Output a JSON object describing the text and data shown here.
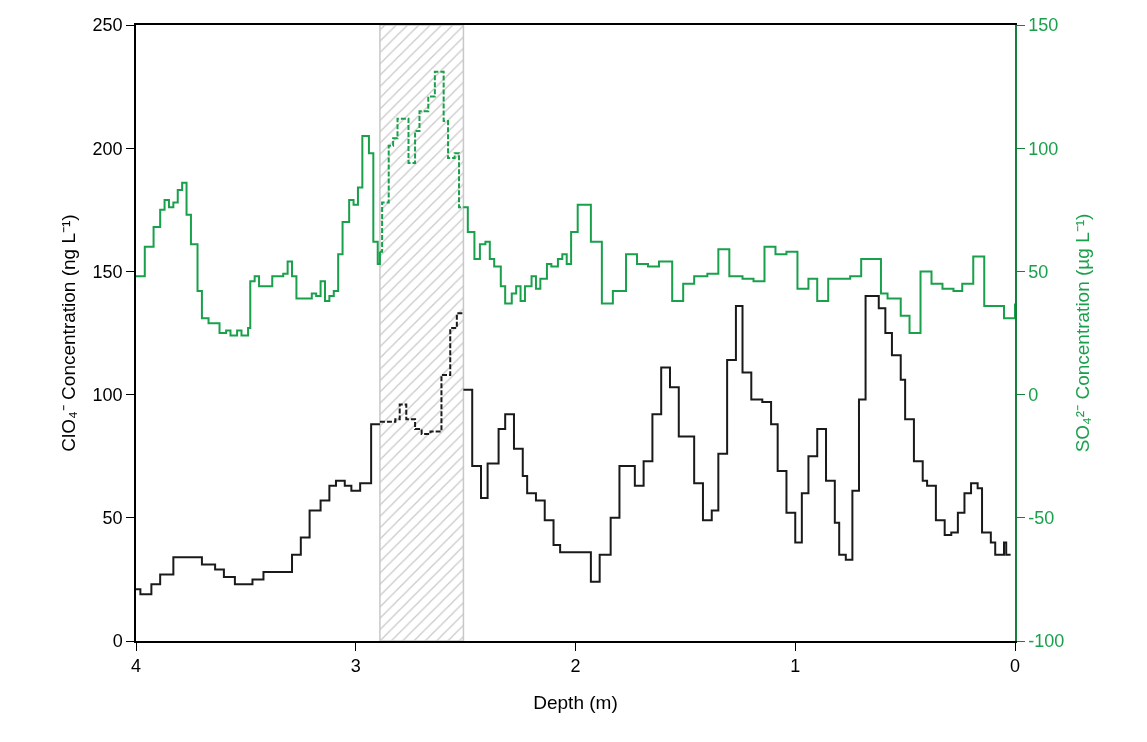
{
  "chart_data": {
    "type": "step",
    "xlabel": "Depth (m)",
    "ylabel": "ClO₄⁻ Concentration (ng L⁻¹)",
    "y2label": "SO₄²⁻ Concentration (µg L⁻¹)",
    "xlim": [
      4,
      0
    ],
    "xticks": [
      4,
      3,
      2,
      1,
      0
    ],
    "ylim": [
      0,
      250
    ],
    "yticks": [
      0,
      50,
      100,
      150,
      200,
      250
    ],
    "y2lim": [
      -100,
      150
    ],
    "y2ticks": [
      -100,
      -50,
      0,
      50,
      100,
      150
    ],
    "grid": false,
    "bands": [
      {
        "axis": "x",
        "from": 2.89,
        "to": 2.51,
        "color": "#c8c8c8"
      }
    ],
    "series": [
      {
        "color": "#1a1a1a",
        "line_style": "solid",
        "x": [
          4.0,
          3.98,
          3.93,
          3.89,
          3.83,
          3.7,
          3.64,
          3.6,
          3.55,
          3.51,
          3.47,
          3.42,
          3.29,
          3.25,
          3.21,
          3.16,
          3.12,
          3.09,
          3.05,
          3.02,
          2.98,
          2.93,
          2.89
        ],
        "values": [
          21,
          19,
          23,
          27,
          34,
          31,
          29,
          26,
          23,
          23,
          25,
          28,
          35,
          42,
          53,
          57,
          63,
          65,
          63,
          61,
          64,
          88,
          88
        ]
      },
      {
        "color": "#1a1a1a",
        "line_style": "dashed",
        "x": [
          2.89,
          2.82,
          2.8,
          2.77,
          2.73,
          2.7,
          2.66,
          2.61,
          2.57,
          2.54,
          2.51
        ],
        "values": [
          89,
          90,
          96,
          90,
          86,
          84,
          85,
          108,
          127,
          133,
          133
        ]
      },
      {
        "color": "#1a1a1a",
        "line_style": "solid",
        "x": [
          2.51,
          2.47,
          2.43,
          2.4,
          2.35,
          2.32,
          2.28,
          2.24,
          2.22,
          2.18,
          2.14,
          2.1,
          2.07,
          2.0,
          1.93,
          1.89,
          1.84,
          1.8,
          1.73,
          1.69,
          1.65,
          1.61,
          1.57,
          1.53,
          1.46,
          1.42,
          1.38,
          1.35,
          1.31,
          1.27,
          1.24,
          1.2,
          1.15,
          1.11,
          1.08,
          1.04,
          1.0,
          0.97,
          0.94,
          0.9,
          0.86,
          0.82,
          0.8,
          0.77,
          0.74,
          0.71,
          0.68,
          0.62,
          0.59,
          0.56,
          0.52,
          0.5,
          0.46,
          0.42,
          0.4,
          0.36,
          0.32,
          0.29,
          0.26,
          0.23,
          0.2,
          0.17,
          0.15,
          0.11,
          0.09,
          0.05,
          0.04,
          0.02
        ],
        "values": [
          102,
          71,
          58,
          72,
          86,
          92,
          78,
          67,
          60,
          57,
          49,
          39,
          36,
          36,
          24,
          35,
          50,
          71,
          63,
          73,
          92,
          111,
          103,
          83,
          64,
          49,
          53,
          76,
          114,
          136,
          109,
          98,
          97,
          88,
          69,
          52,
          40,
          60,
          75,
          86,
          65,
          48,
          35,
          33,
          61,
          98,
          140,
          135,
          125,
          116,
          106,
          90,
          73,
          65,
          63,
          49,
          43,
          44,
          52,
          60,
          64,
          62,
          44,
          40,
          35,
          40,
          35,
          35
        ]
      },
      {
        "color": "#19a04b",
        "line_style": "solid",
        "axis": "y2",
        "x": [
          4.0,
          3.96,
          3.92,
          3.89,
          3.87,
          3.85,
          3.83,
          3.81,
          3.79,
          3.77,
          3.75,
          3.72,
          3.7,
          3.67,
          3.62,
          3.59,
          3.57,
          3.54,
          3.52,
          3.49,
          3.48,
          3.46,
          3.44,
          3.38,
          3.33,
          3.31,
          3.29,
          3.27,
          3.2,
          3.18,
          3.16,
          3.14,
          3.12,
          3.1,
          3.08,
          3.06,
          3.03,
          3.01,
          2.99,
          2.97,
          2.94,
          2.92,
          2.9,
          2.89
        ],
        "values": [
          48,
          60,
          68,
          75,
          79,
          76,
          78,
          83,
          86,
          73,
          61,
          42,
          31,
          29,
          25,
          26,
          24,
          26,
          24,
          27,
          46,
          48,
          44,
          48,
          49,
          54,
          48,
          39,
          41,
          40,
          46,
          38,
          40,
          42,
          57,
          70,
          79,
          77,
          84,
          105,
          98,
          62,
          53,
          58
        ]
      },
      {
        "color": "#19a04b",
        "line_style": "dashed",
        "axis": "y2",
        "x": [
          2.89,
          2.88,
          2.85,
          2.83,
          2.81,
          2.76,
          2.73,
          2.71,
          2.67,
          2.64,
          2.6,
          2.58,
          2.55,
          2.53,
          2.51
        ],
        "values": [
          58,
          78,
          101,
          104,
          112,
          94,
          107,
          115,
          121,
          131,
          111,
          96,
          98,
          76,
          76
        ]
      },
      {
        "color": "#19a04b",
        "line_style": "solid",
        "axis": "y2",
        "x": [
          2.51,
          2.49,
          2.46,
          2.435,
          2.41,
          2.39,
          2.37,
          2.34,
          2.32,
          2.29,
          2.27,
          2.25,
          2.23,
          2.2,
          2.18,
          2.16,
          2.13,
          2.11,
          2.08,
          2.06,
          2.04,
          2.02,
          1.99,
          1.93,
          1.88,
          1.83,
          1.77,
          1.72,
          1.67,
          1.62,
          1.56,
          1.51,
          1.46,
          1.4,
          1.35,
          1.3,
          1.24,
          1.19,
          1.14,
          1.09,
          1.04,
          0.99,
          0.94,
          0.9,
          0.85,
          0.8,
          0.75,
          0.7,
          0.61,
          0.58,
          0.52,
          0.48,
          0.43,
          0.38,
          0.33,
          0.28,
          0.24,
          0.19,
          0.14,
          0.09,
          0.05,
          0.0
        ],
        "values": [
          76,
          66,
          55,
          61,
          62,
          55,
          52,
          44,
          37,
          41,
          44,
          38,
          44,
          48,
          43,
          47,
          53,
          52,
          55,
          57,
          53,
          66,
          77,
          62,
          37,
          42,
          57,
          53,
          52,
          54,
          38,
          45,
          48,
          49,
          59,
          48,
          47,
          46,
          60,
          57,
          58,
          43,
          47,
          38,
          47,
          47,
          48,
          55,
          41,
          39,
          32,
          25,
          50,
          45,
          43,
          42,
          45,
          56,
          36,
          36,
          31,
          37
        ]
      }
    ]
  }
}
